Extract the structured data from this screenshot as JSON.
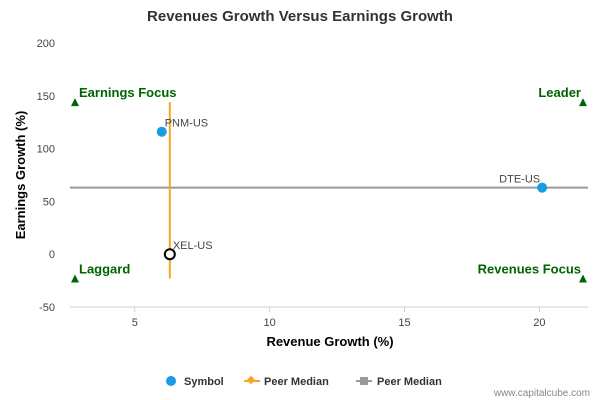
{
  "chart_data": {
    "type": "scatter",
    "title": "Revenues Growth Versus Earnings Growth",
    "xlabel": "Revenue Growth (%)",
    "ylabel": "Earnings Growth (%)",
    "xlim": [
      2.6,
      21.8
    ],
    "ylim": [
      -50,
      200
    ],
    "xticks": [
      5,
      10,
      15,
      20
    ],
    "yticks": [
      -50,
      0,
      50,
      100,
      150,
      200
    ],
    "points": [
      {
        "symbol": "PNM-US",
        "x": 6.0,
        "y": 116,
        "style": "filled"
      },
      {
        "symbol": "DTE-US",
        "x": 20.1,
        "y": 63,
        "style": "filled"
      },
      {
        "symbol": "XEL-US",
        "x": 6.3,
        "y": 0,
        "style": "highlight"
      }
    ],
    "peer_median": {
      "x": 6.3,
      "y": 63,
      "x_line_yrange": [
        -23,
        144
      ],
      "y_line_xrange": [
        2.6,
        21.8
      ]
    },
    "quadrants": {
      "top_left": "Earnings Focus",
      "top_right": "Leader",
      "bottom_left": "Laggard",
      "bottom_right": "Revenues Focus"
    },
    "quadrant_marker_levels": {
      "top": 144,
      "bottom": -23
    },
    "legend": [
      {
        "label": "Symbol",
        "kind": "dot"
      },
      {
        "label": "Peer Median",
        "kind": "diamond-line"
      },
      {
        "label": "Peer Median",
        "kind": "square-line"
      }
    ],
    "colors": {
      "point": "#1a9be6",
      "peer_x_line": "#f5a623",
      "peer_y_line": "#999999",
      "quadrant": "#006400",
      "highlight_stroke": "#000000"
    }
  },
  "credit": "www.capitalcube.com"
}
